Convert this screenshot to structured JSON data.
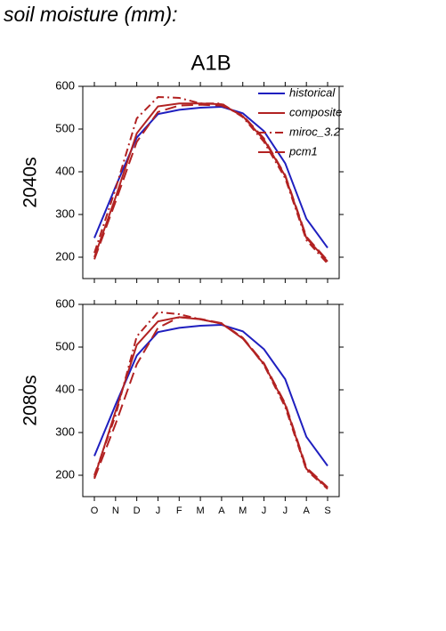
{
  "page_title": "soil moisture (mm):",
  "chart_data": [
    {
      "type": "line",
      "title": "A1B",
      "ylabel": "2040s",
      "categories": [
        null,
        null,
        null,
        null,
        null,
        null,
        null,
        null,
        null,
        null,
        null,
        null
      ],
      "ylim": [
        150,
        600
      ],
      "yticks": [
        200,
        300,
        400,
        500,
        600
      ],
      "grid": false,
      "legend": "upper right",
      "series": [
        {
          "name": "historical",
          "color": "#1f1fbf",
          "style": "solid",
          "values": [
            245,
            365,
            480,
            535,
            545,
            550,
            552,
            537,
            495,
            420,
            290,
            222
          ]
        },
        {
          "name": "composite",
          "color": "#b22222",
          "style": "solid",
          "values": [
            200,
            340,
            490,
            553,
            560,
            560,
            558,
            530,
            475,
            390,
            245,
            190
          ]
        },
        {
          "name": "miroc_3.2",
          "color": "#b22222",
          "style": "dashdot",
          "values": [
            210,
            360,
            525,
            575,
            573,
            560,
            560,
            528,
            470,
            385,
            240,
            185
          ]
        },
        {
          "name": "pcm1",
          "color": "#b22222",
          "style": "dashed",
          "values": [
            195,
            330,
            470,
            540,
            555,
            557,
            555,
            532,
            478,
            392,
            248,
            192
          ]
        }
      ]
    },
    {
      "type": "line",
      "ylabel": "2080s",
      "categories": [
        "O",
        "N",
        "D",
        "J",
        "F",
        "M",
        "A",
        "M",
        "J",
        "J",
        "A",
        "S"
      ],
      "ylim": [
        150,
        600
      ],
      "yticks": [
        200,
        300,
        400,
        500,
        600
      ],
      "grid": false,
      "series": [
        {
          "color": "#1f1fbf",
          "style": "solid",
          "values": [
            245,
            365,
            480,
            535,
            545,
            550,
            552,
            537,
            495,
            425,
            290,
            222
          ]
        },
        {
          "color": "#b22222",
          "style": "solid",
          "values": [
            195,
            350,
            505,
            560,
            570,
            565,
            555,
            520,
            460,
            365,
            215,
            170
          ]
        },
        {
          "color": "#b22222",
          "style": "dashdot",
          "values": [
            200,
            340,
            525,
            582,
            577,
            565,
            555,
            522,
            458,
            360,
            212,
            168
          ]
        },
        {
          "color": "#b22222",
          "style": "dashed",
          "values": [
            192,
            320,
            460,
            545,
            570,
            566,
            556,
            522,
            462,
            368,
            218,
            172
          ]
        }
      ]
    }
  ]
}
